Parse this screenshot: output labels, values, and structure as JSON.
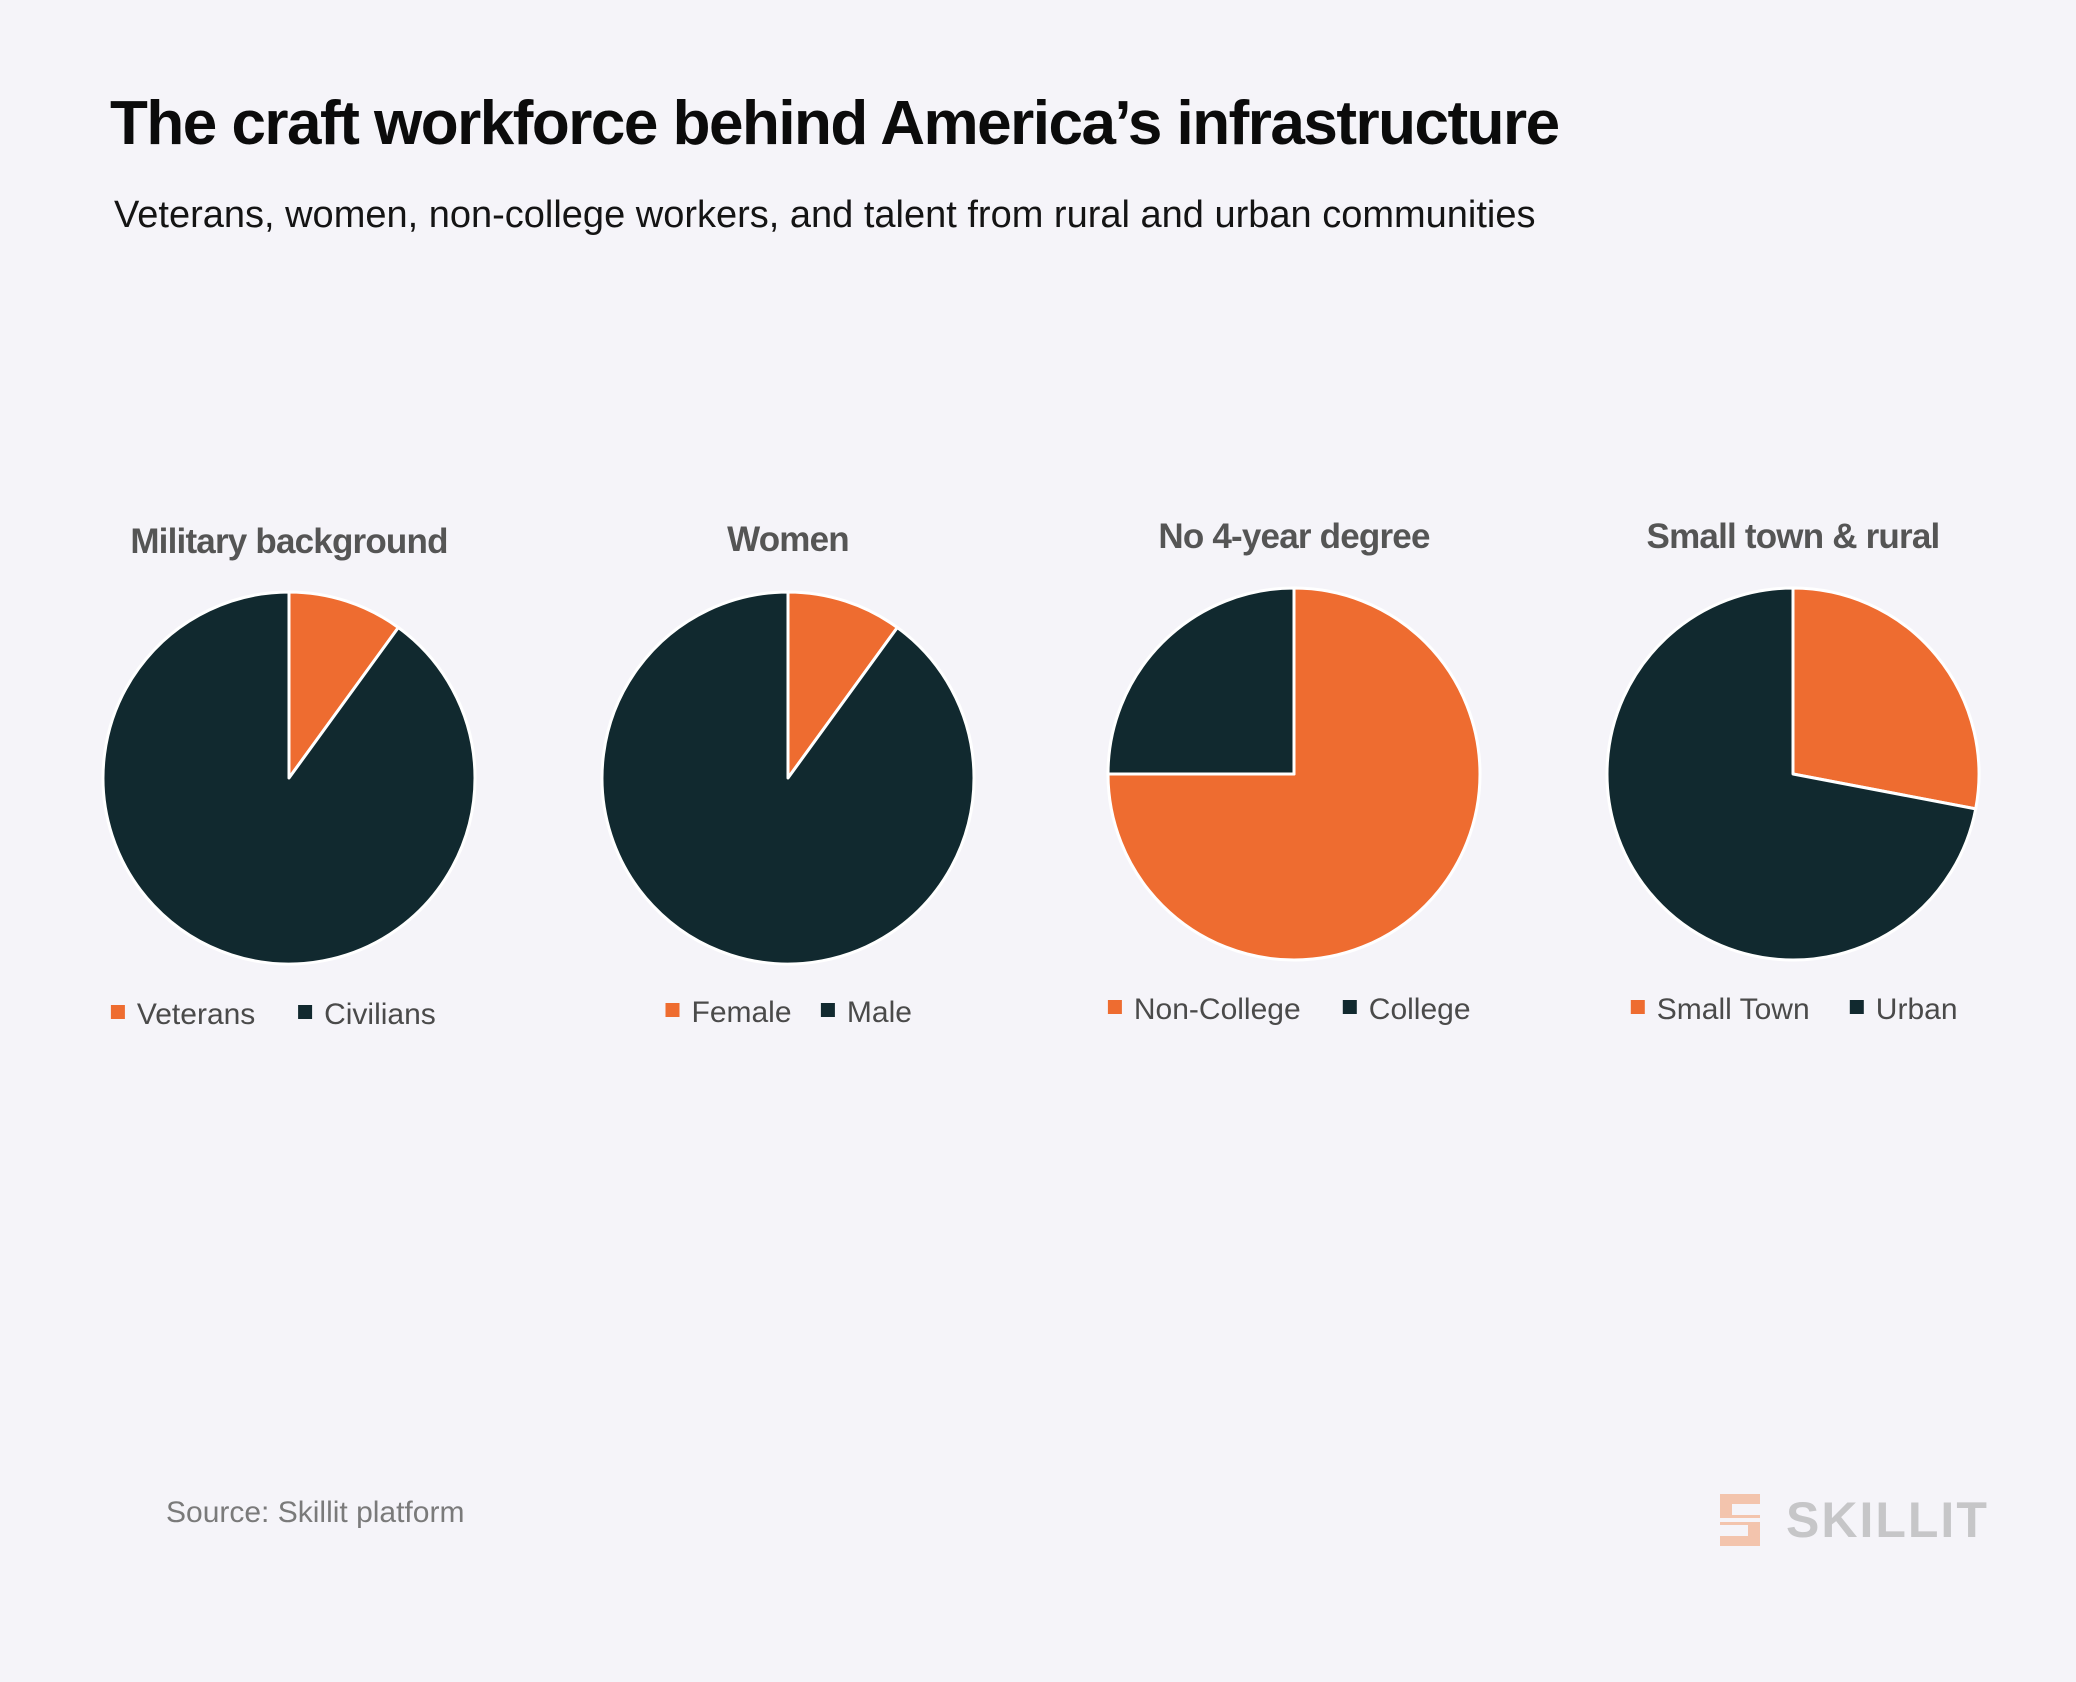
{
  "header": {
    "title": "The craft workforce behind America’s infrastructure",
    "subtitle": "Veterans, women, non-college workers, and talent from rural and urban communities"
  },
  "colors": {
    "orange": "#ee6c30",
    "dark": "#11292f",
    "background": "#f5f4f9",
    "slice_border": "#ffffff"
  },
  "chart_data": [
    {
      "type": "pie",
      "title": "Military background",
      "labels": [
        "Veterans",
        "Civilians"
      ],
      "values": [
        10,
        90
      ],
      "colors": [
        "#ee6c30",
        "#11292f"
      ],
      "legend": "bottom"
    },
    {
      "type": "pie",
      "title": "Women",
      "labels": [
        "Female",
        "Male"
      ],
      "values": [
        10,
        90
      ],
      "colors": [
        "#ee6c30",
        "#11292f"
      ],
      "legend": "bottom"
    },
    {
      "type": "pie",
      "title": "No 4-year degree",
      "labels": [
        "Non-College",
        "College"
      ],
      "values": [
        75,
        25
      ],
      "colors": [
        "#ee6c30",
        "#11292f"
      ],
      "legend": "bottom"
    },
    {
      "type": "pie",
      "title": "Small town & rural",
      "labels": [
        "Small Town",
        "Urban"
      ],
      "values": [
        28,
        72
      ],
      "colors": [
        "#ee6c30",
        "#11292f"
      ],
      "legend": "bottom"
    }
  ],
  "footer": {
    "source": "Source: Skillit platform",
    "logo_text": "SKILLIT",
    "logo_icon": "skillit-s-logo-icon"
  }
}
